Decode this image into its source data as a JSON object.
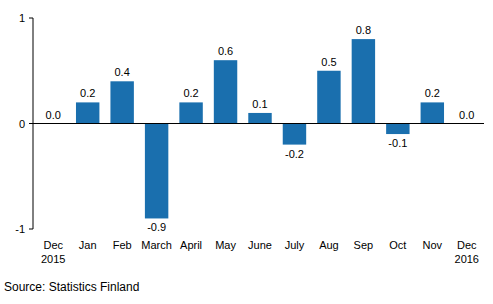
{
  "chart_data": {
    "type": "bar",
    "categories": [
      "Dec 2015",
      "Jan",
      "Feb",
      "March",
      "April",
      "May",
      "June",
      "July",
      "Aug",
      "Sep",
      "Oct",
      "Nov",
      "Dec 2016"
    ],
    "values": [
      0.0,
      0.2,
      0.4,
      -0.9,
      0.2,
      0.6,
      0.1,
      -0.2,
      0.5,
      0.8,
      -0.1,
      0.2,
      0.0
    ],
    "value_labels": [
      "0.0",
      "0.2",
      "0.4",
      "-0.9",
      "0.2",
      "0.6",
      "0.1",
      "-0.2",
      "0.5",
      "0.8",
      "-0.1",
      "0.2",
      "0.0"
    ],
    "data_labels": true,
    "color": "#1a6fae",
    "ylim": [
      -1,
      1
    ],
    "yticks": [
      -1,
      0,
      1
    ],
    "grid": false,
    "source": "Source: Statistics Finland"
  }
}
